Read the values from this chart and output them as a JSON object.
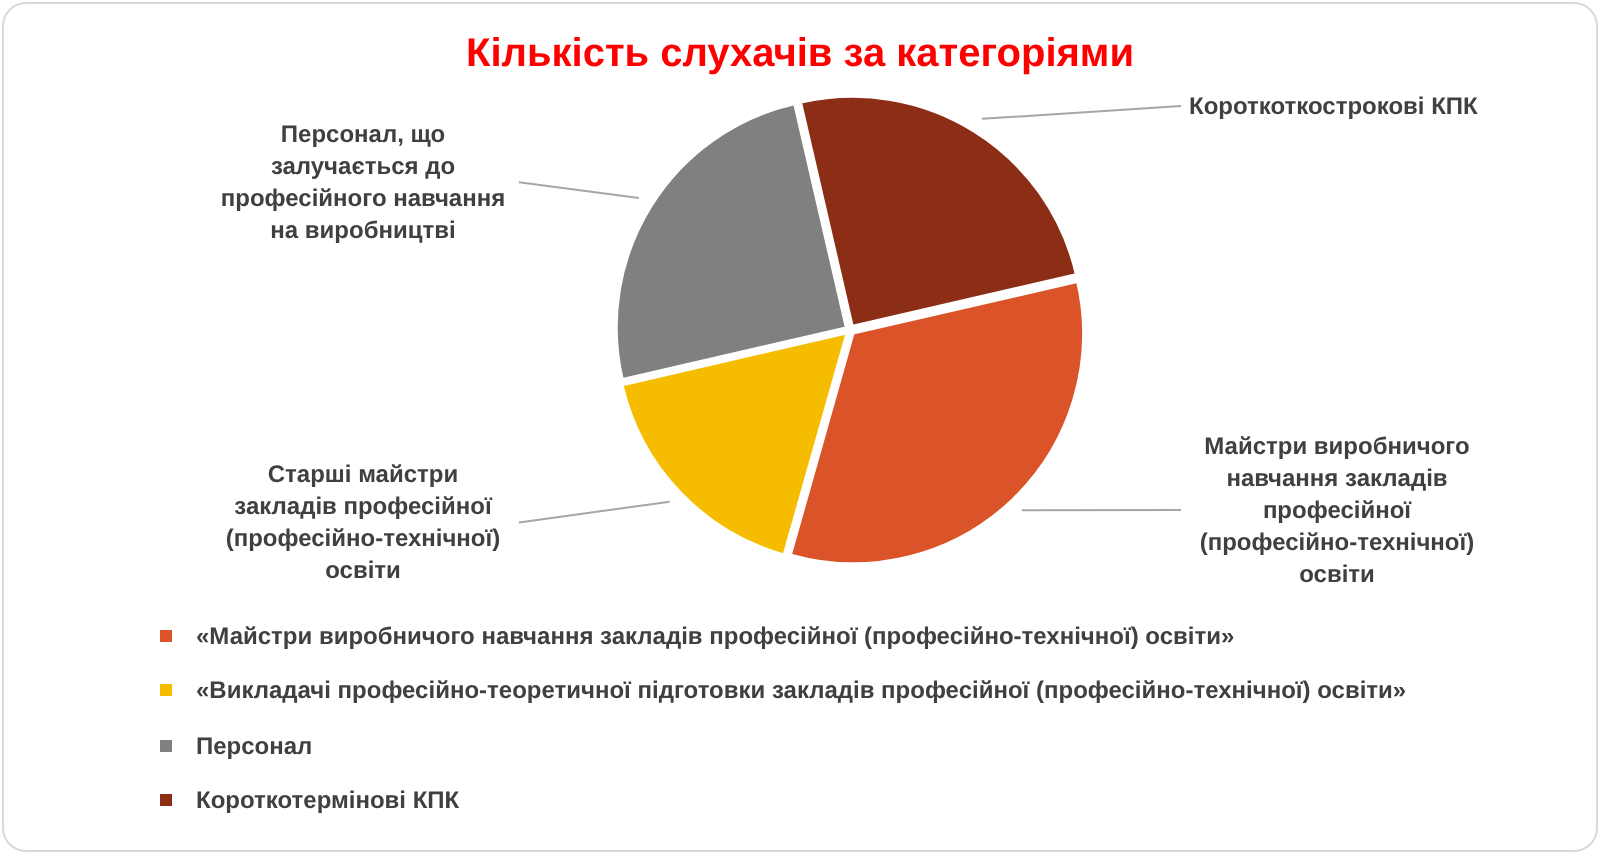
{
  "chart_data": {
    "type": "pie",
    "title": "Кількість слухачів за категоріями",
    "categories": [
      "«Майстри виробничого навчання закладів професійної (професійно-технічної) освіти»",
      "«Викладачі професійно-теоретичної підготовки закладів професійної (професійно-технічної) освіти»",
      "Персонал",
      "Короткотермінові КПК"
    ],
    "values": [
      33,
      17,
      25,
      25
    ],
    "colors": [
      "#db5328",
      "#f6bd00",
      "#808080",
      "#8c2d16"
    ],
    "legend": "bottom",
    "annotations": [
      "Майстри виробничого навчання закладів професійної (професійно-технічної) освіти",
      "Старші майстри закладів професійної (професійно-технічної) освіти",
      "Персонал, що залучається до професійного навчання на виробництві",
      "Короткоткострокові КПК"
    ]
  }
}
